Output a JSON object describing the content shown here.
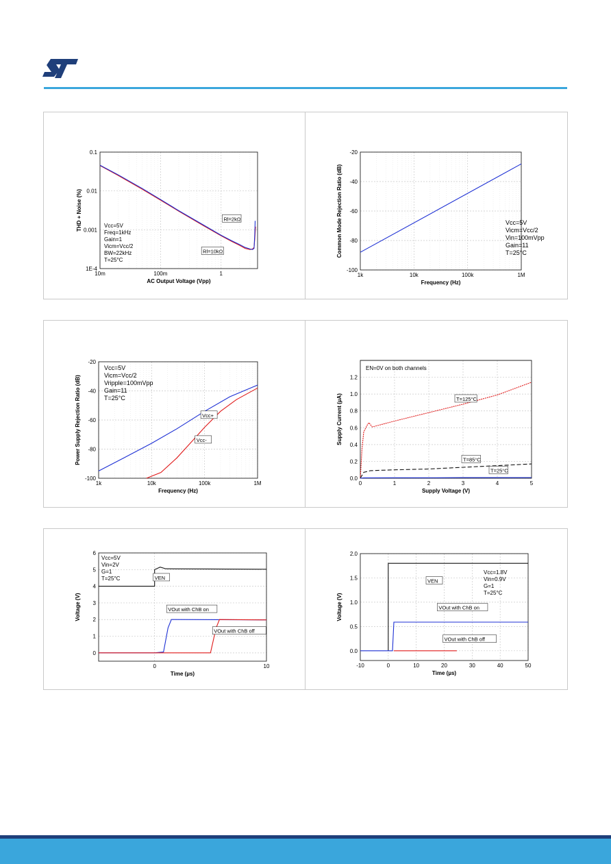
{
  "colors": {
    "accent": "#3aa6dc",
    "footer_dark": "#1f3f7a",
    "footer_light": "#3aa6dc",
    "logo": "#1f3f7a",
    "blue": "#1c2fd4",
    "red": "#e01a1a"
  },
  "header": {
    "logo_icon": "st-logo-icon"
  },
  "chart_data": [
    {
      "type": "line",
      "xlabel": "AC Output Voltage (Vpp)",
      "ylabel": "THD + Noise (%)",
      "xscale": "log",
      "yscale": "log",
      "xlim": [
        0.01,
        4
      ],
      "ylim": [
        0.0001,
        0.1
      ],
      "xticks": [
        {
          "v": 0.01,
          "label": "10m"
        },
        {
          "v": 0.1,
          "label": "100m"
        },
        {
          "v": 1,
          "label": "1"
        }
      ],
      "yticks": [
        {
          "v": 0.1,
          "label": "0.1"
        },
        {
          "v": 0.01,
          "label": "0.01"
        },
        {
          "v": 0.001,
          "label": "0.001"
        },
        {
          "v": 0.0001,
          "label": "1E-4"
        }
      ],
      "conditions": [
        "Vcc=5V",
        "Freq=1kHz",
        "Gain=1",
        "Vicm=Vcc/2",
        "BW=22kHz",
        "T=25°C"
      ],
      "annotations": [
        {
          "text": "Rl=2kΩ",
          "x": 1.1,
          "y": 0.0017
        },
        {
          "text": "Rl=10kΩ",
          "x": 0.5,
          "y": 0.00025
        }
      ],
      "series": [
        {
          "name": "Rl=2kΩ",
          "color": "red",
          "x": [
            0.01,
            0.02,
            0.05,
            0.1,
            0.2,
            0.5,
            1,
            1.5,
            2,
            2.5,
            3,
            3.3,
            3.5,
            3.6,
            3.7
          ],
          "y": [
            0.045,
            0.025,
            0.011,
            0.0058,
            0.003,
            0.0013,
            0.0007,
            0.0005,
            0.0004,
            0.00033,
            0.00031,
            0.00032,
            0.00035,
            0.0006,
            0.0012
          ]
        },
        {
          "name": "Rl=10kΩ",
          "color": "blue",
          "x": [
            0.01,
            0.02,
            0.05,
            0.1,
            0.2,
            0.5,
            1,
            1.5,
            2,
            2.5,
            3,
            3.3,
            3.5,
            3.6,
            3.65
          ],
          "y": [
            0.046,
            0.026,
            0.0115,
            0.006,
            0.0031,
            0.00135,
            0.00072,
            0.00052,
            0.00042,
            0.00035,
            0.00032,
            0.00031,
            0.00033,
            0.0008,
            0.0017
          ]
        }
      ]
    },
    {
      "type": "line",
      "xlabel": "Frequency (Hz)",
      "ylabel": "Common Mode Rejection Ratio (dB)",
      "xscale": "log",
      "xlim": [
        1000,
        1000000
      ],
      "ylim": [
        -100,
        -20
      ],
      "xticks": [
        {
          "v": 1000,
          "label": "1k"
        },
        {
          "v": 10000,
          "label": "10k"
        },
        {
          "v": 100000,
          "label": "100k"
        },
        {
          "v": 1000000,
          "label": "1M"
        }
      ],
      "yticks": [
        {
          "v": -20,
          "label": "-20"
        },
        {
          "v": -40,
          "label": "-40"
        },
        {
          "v": -60,
          "label": "-60"
        },
        {
          "v": -80,
          "label": "-80"
        },
        {
          "v": -100,
          "label": "-100"
        }
      ],
      "conditions": [
        "Vcc=5V",
        "Vicm=Vcc/2",
        "Vin=100mVpp",
        "Gain=11",
        "T=25°C"
      ],
      "series": [
        {
          "color": "blue",
          "x": [
            1000,
            1000000
          ],
          "y": [
            -88,
            -28
          ]
        }
      ]
    },
    {
      "type": "line",
      "xlabel": "Frequency (Hz)",
      "ylabel": "Power Supply Rejection Ratio (dB)",
      "xscale": "log",
      "xlim": [
        1000,
        1000000
      ],
      "ylim": [
        -100,
        -20
      ],
      "xticks": [
        {
          "v": 1000,
          "label": "1k"
        },
        {
          "v": 10000,
          "label": "10k"
        },
        {
          "v": 100000,
          "label": "100k"
        },
        {
          "v": 1000000,
          "label": "1M"
        }
      ],
      "yticks": [
        {
          "v": -20,
          "label": "-20"
        },
        {
          "v": -40,
          "label": "-40"
        },
        {
          "v": -60,
          "label": "-60"
        },
        {
          "v": -80,
          "label": "-80"
        },
        {
          "v": -100,
          "label": "-100"
        }
      ],
      "conditions": [
        "Vcc=5V",
        "Vicm=Vcc/2",
        "Vripple=100mVpp",
        "Gain=11",
        "T=25°C"
      ],
      "annotations": [
        {
          "text": "Vcc+",
          "x": 90000,
          "y": -58
        },
        {
          "text": "Vcc-",
          "x": 70000,
          "y": -75
        }
      ],
      "series": [
        {
          "name": "Vcc+",
          "color": "blue",
          "x": [
            1000,
            3000,
            10000,
            30000,
            100000,
            300000,
            1000000
          ],
          "y": [
            -95,
            -86,
            -76,
            -66,
            -54,
            -44,
            -36
          ]
        },
        {
          "name": "Vcc-",
          "color": "red",
          "x": [
            8000,
            15000,
            30000,
            60000,
            100000,
            200000,
            400000,
            1000000
          ],
          "y": [
            -100,
            -96,
            -86,
            -74,
            -65,
            -54,
            -46,
            -38
          ]
        }
      ]
    },
    {
      "type": "line",
      "xlabel": "Supply Voltage (V)",
      "ylabel": "Supply Current (µA)",
      "xlim": [
        0,
        5
      ],
      "ylim": [
        0,
        1.4
      ],
      "xticks": [
        {
          "v": 0,
          "label": "0"
        },
        {
          "v": 1,
          "label": "1"
        },
        {
          "v": 2,
          "label": "2"
        },
        {
          "v": 3,
          "label": "3"
        },
        {
          "v": 4,
          "label": "4"
        },
        {
          "v": 5,
          "label": "5"
        }
      ],
      "yticks": [
        {
          "v": 0,
          "label": "0.0"
        },
        {
          "v": 0.2,
          "label": "0.2"
        },
        {
          "v": 0.4,
          "label": "0.4"
        },
        {
          "v": 0.6,
          "label": "0.6"
        },
        {
          "v": 0.8,
          "label": "0.8"
        },
        {
          "v": 1.0,
          "label": "1.0"
        },
        {
          "v": 1.2,
          "label": "1.2"
        }
      ],
      "legend_note": "EN=0V on both channels",
      "annotations": [
        {
          "text": "T=125°C",
          "x": 2.8,
          "y": 0.92
        },
        {
          "text": "T=85°C",
          "x": 3.0,
          "y": 0.2
        },
        {
          "text": "T=25°C",
          "x": 3.8,
          "y": 0.07
        }
      ],
      "series": [
        {
          "name": "T=125°C",
          "color": "red",
          "x": [
            0,
            0.05,
            0.1,
            0.2,
            0.25,
            0.35,
            1,
            2,
            3,
            4,
            5
          ],
          "y": [
            0,
            0.35,
            0.55,
            0.63,
            0.66,
            0.61,
            0.68,
            0.78,
            0.88,
            0.99,
            1.14
          ]
        },
        {
          "name": "T=85°C",
          "color": "black",
          "x": [
            0,
            0.1,
            0.3,
            1,
            2,
            3,
            4,
            5
          ],
          "y": [
            0,
            0.07,
            0.09,
            0.1,
            0.11,
            0.13,
            0.15,
            0.17
          ]
        },
        {
          "name": "T=25°C",
          "color": "blue",
          "x": [
            0,
            0.1,
            0.3,
            1,
            2,
            3,
            4,
            5
          ],
          "y": [
            0,
            0.005,
            0.005,
            0.006,
            0.006,
            0.007,
            0.007,
            0.008
          ]
        }
      ]
    },
    {
      "type": "line",
      "xlabel": "Time (µs)",
      "ylabel": "Voltage (V)",
      "xlim": [
        -5,
        10
      ],
      "ylim": [
        -0.5,
        6
      ],
      "xticks": [
        {
          "v": 0,
          "label": "0"
        },
        {
          "v": 10,
          "label": "10"
        }
      ],
      "yticks": [
        {
          "v": 0,
          "label": "0"
        },
        {
          "v": 1,
          "label": "1"
        },
        {
          "v": 2,
          "label": "2"
        },
        {
          "v": 3,
          "label": "3"
        },
        {
          "v": 4,
          "label": "4"
        },
        {
          "v": 5,
          "label": "5"
        },
        {
          "v": 6,
          "label": "6"
        }
      ],
      "conditions": [
        "Vcc=5V",
        "Vin=2V",
        "G=1",
        "T=25°C"
      ],
      "annotations": [
        {
          "text": "VEN",
          "x": 0,
          "y": 4.4
        },
        {
          "text": "VOut with ChB on",
          "x": 1.2,
          "y": 2.5
        },
        {
          "text": "VOut with ChB off",
          "x": 5.3,
          "y": 1.2
        }
      ],
      "series": [
        {
          "name": "VEN",
          "color": "black",
          "x": [
            -5,
            0,
            0,
            0.5,
            1,
            10
          ],
          "y": [
            4,
            4,
            5.0,
            5.15,
            5.05,
            5.02
          ]
        },
        {
          "name": "VOut with ChB on",
          "color": "blue",
          "x": [
            -5,
            0,
            0.8,
            1.2,
            1.5,
            10
          ],
          "y": [
            0,
            0,
            0.05,
            1.5,
            2.0,
            1.98
          ]
        },
        {
          "name": "VOut with ChB off",
          "color": "red",
          "x": [
            -5,
            5,
            5.3,
            5.5,
            5.8,
            10
          ],
          "y": [
            0,
            0,
            0.9,
            1.5,
            2.0,
            1.98
          ]
        }
      ]
    },
    {
      "type": "line",
      "xlabel": "Time (µs)",
      "ylabel": "Voltage (V)",
      "xlim": [
        -10,
        50
      ],
      "ylim": [
        -0.2,
        2.0
      ],
      "xticks": [
        {
          "v": -10,
          "label": "-10"
        },
        {
          "v": 0,
          "label": "0"
        },
        {
          "v": 10,
          "label": "10"
        },
        {
          "v": 20,
          "label": "20"
        },
        {
          "v": 30,
          "label": "30"
        },
        {
          "v": 40,
          "label": "40"
        },
        {
          "v": 50,
          "label": "50"
        }
      ],
      "yticks": [
        {
          "v": 0,
          "label": "0.0"
        },
        {
          "v": 0.5,
          "label": "0.5"
        },
        {
          "v": 1.0,
          "label": "1.0"
        },
        {
          "v": 1.5,
          "label": "1.5"
        },
        {
          "v": 2.0,
          "label": "2.0"
        }
      ],
      "conditions": [
        "Vcc=1.8V",
        "Vin=0.9V",
        "G=1",
        "T=25°C"
      ],
      "annotations": [
        {
          "text": "VEN",
          "x": 14,
          "y": 1.4
        },
        {
          "text": "VOut with ChB on",
          "x": 18,
          "y": 0.85
        },
        {
          "text": "VOut with ChB off",
          "x": 20,
          "y": 0.2
        }
      ],
      "series": [
        {
          "name": "VEN",
          "color": "black",
          "x": [
            0,
            0,
            50
          ],
          "y": [
            0,
            1.8,
            1.8
          ]
        },
        {
          "name": "VOut with ChB on",
          "color": "blue",
          "x": [
            -10,
            1.5,
            2,
            50
          ],
          "y": [
            0,
            0,
            0.59,
            0.59
          ]
        },
        {
          "name": "VOut with ChB off",
          "color": "red",
          "x": [
            2,
            24.5
          ],
          "y": [
            0,
            0
          ]
        }
      ]
    }
  ]
}
